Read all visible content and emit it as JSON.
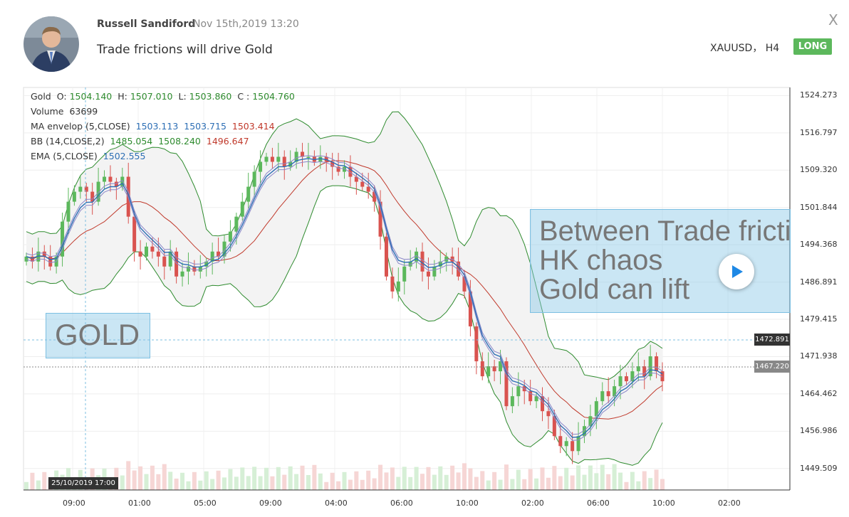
{
  "post": {
    "author": "Russell Sandiford",
    "date": "Nov 15th,2019 13:20",
    "title": "Trade frictions will drive Gold",
    "symbol": "XAUUSD， H4",
    "direction": "LONG",
    "close_label": "X"
  },
  "legend": {
    "gold_label": "Gold",
    "o_label": "O:",
    "o_value": "1504.140",
    "h_label": "H:",
    "h_value": "1507.010",
    "l_label": "L:",
    "l_value": "1503.860",
    "c_label": "C :",
    "c_value": "1504.760",
    "volume_label": "Volume",
    "volume_value": "63699",
    "ma_label": "MA envelop (5,CLOSE)",
    "ma_v1": "1503.113",
    "ma_v2": "1503.715",
    "ma_v3": "1503.414",
    "bb_label": "BB (14,CLOSE,2)",
    "bb_v1": "1485.054",
    "bb_v2": "1508.240",
    "bb_v3": "1496.647",
    "ema_label": "EMA (5,CLOSE)",
    "ema_v1": "1502.555"
  },
  "annotations": {
    "gold_text": "GOLD",
    "note_lines": [
      "Between Trade frictions",
      "HK chaos",
      "Gold can lift"
    ]
  },
  "price_axis": [
    "1524.273",
    "1516.797",
    "1509.320",
    "1501.844",
    "1494.368",
    "1486.891",
    "1479.415",
    "1471.938",
    "1464.462",
    "1456.986",
    "1449.509"
  ],
  "time_axis": [
    "09:00",
    "01:00",
    "05:00",
    "09:00",
    "04:00",
    "06:00",
    "10:00",
    "02:00",
    "06:00",
    "10:00",
    "02:00"
  ],
  "crosshair": {
    "price": "1472.891",
    "date": "25/10/2019  17:00"
  },
  "last_price": "1467.220",
  "colors": {
    "up": "#5cb85c",
    "down": "#d9534f",
    "bb": "#2e8b2e",
    "ema": "#2e6fb5",
    "envelope": "#8a86c8",
    "mid": "#c0392b",
    "long": "#5cb85c"
  },
  "chart_data": {
    "type": "candlestick",
    "symbol": "XAUUSD",
    "timeframe": "H4",
    "ylim": [
      1446,
      1525
    ],
    "price_ticks": [
      1524.273,
      1516.797,
      1509.32,
      1501.844,
      1494.368,
      1486.891,
      1479.415,
      1471.938,
      1464.462,
      1456.986,
      1449.509
    ],
    "time_ticks": [
      "09:00",
      "01:00",
      "05:00",
      "09:00",
      "04:00",
      "06:00",
      "10:00",
      "02:00",
      "06:00",
      "10:00",
      "02:00"
    ],
    "close_series": [
      1492,
      1491,
      1493,
      1492,
      1490,
      1492,
      1499,
      1503,
      1505,
      1506,
      1505,
      1503,
      1507,
      1508,
      1507,
      1506,
      1508,
      1500,
      1493,
      1492,
      1494,
      1493,
      1492,
      1490,
      1493,
      1488,
      1489,
      1490,
      1489,
      1490,
      1491,
      1493,
      1492,
      1495,
      1497,
      1500,
      1503,
      1506,
      1509,
      1511,
      1512,
      1511,
      1512,
      1510,
      1511,
      1513,
      1512,
      1512,
      1511,
      1512,
      1511,
      1510,
      1509,
      1510,
      1508,
      1507,
      1506,
      1505,
      1503,
      1496,
      1488,
      1485,
      1487,
      1490,
      1491,
      1493,
      1489,
      1488,
      1490,
      1491,
      1492,
      1491,
      1488,
      1485,
      1478,
      1471,
      1468,
      1470,
      1469,
      1471,
      1462,
      1464,
      1466,
      1465,
      1463,
      1464,
      1461,
      1460,
      1456,
      1454,
      1455,
      1453,
      1456,
      1458,
      1460,
      1463,
      1465,
      1464,
      1466,
      1468,
      1467,
      1469,
      1470,
      1468,
      1472,
      1469,
      1467
    ]
  }
}
